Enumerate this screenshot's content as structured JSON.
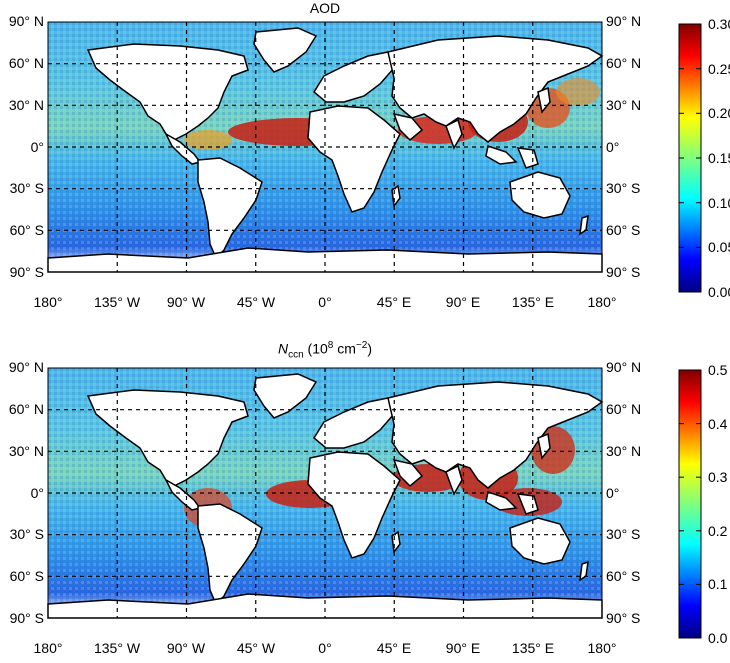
{
  "panels": [
    {
      "id": "aod",
      "title": "AOD",
      "title_italic_part": "",
      "title_rest": "",
      "lat_labels_left": [
        "90° N",
        "60° N",
        "30° N",
        "0°",
        "30° S",
        "60° S",
        "90° S"
      ],
      "lat_labels_right": [
        "90° N",
        "60° N",
        "30° N",
        "0°",
        "30° S",
        "60° S",
        "90° S"
      ],
      "lon_labels": [
        "180°",
        "135° W",
        "90° W",
        "45° W",
        "0°",
        "45° E",
        "90° E",
        "135° E",
        "180°"
      ],
      "colorbar_ticks": [
        "0.30",
        "0.25",
        "0.20",
        "0.15",
        "0.10",
        "0.05",
        "0.00"
      ],
      "colorbar_range": [
        0.0,
        0.3
      ]
    },
    {
      "id": "nccn",
      "title": "",
      "title_italic_part": "N",
      "title_sub": "ccn",
      "title_rest": " (10",
      "title_sup": "8",
      "title_rest2": " cm",
      "title_sup2": "−2",
      "title_close": ")",
      "lat_labels_left": [
        "90° N",
        "60° N",
        "30° N",
        "0°",
        "30° S",
        "60° S",
        "90° S"
      ],
      "lat_labels_right": [
        "90° N",
        "60° N",
        "30° N",
        "0°",
        "30° S",
        "60° S",
        "90° S"
      ],
      "lon_labels": [
        "180°",
        "135° W",
        "90° W",
        "45° W",
        "0°",
        "45° E",
        "90° E",
        "135° E",
        "180°"
      ],
      "colorbar_ticks": [
        "0.5",
        "0.4",
        "0.3",
        "0.2",
        "0.1",
        "0.0"
      ],
      "colorbar_range": [
        0.0,
        0.5
      ]
    }
  ],
  "colors": {
    "ocean_base": "#3aa6e8",
    "ocean_high": "#c81e12",
    "land": "#ffffff",
    "coast": "#000000",
    "grid": "#000000"
  }
}
